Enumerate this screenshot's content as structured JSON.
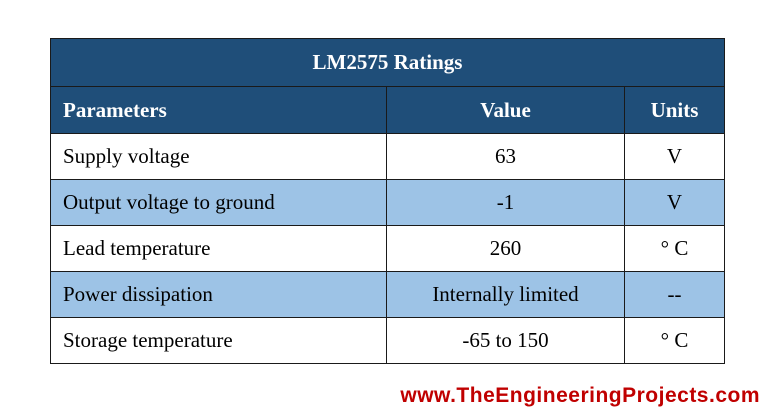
{
  "table": {
    "title": "LM2575 Ratings",
    "headers": {
      "parameters": "Parameters",
      "value": "Value",
      "units": "Units"
    },
    "rows": [
      {
        "parameter": "Supply voltage",
        "value": "63",
        "units": "V"
      },
      {
        "parameter": "Output voltage to ground",
        "value": "-1",
        "units": "V"
      },
      {
        "parameter": "Lead temperature",
        "value": "260",
        "units": "° C"
      },
      {
        "parameter": "Power dissipation",
        "value": "Internally limited",
        "units": "--"
      },
      {
        "parameter": "Storage temperature",
        "value": "-65 to 150",
        "units": "° C"
      }
    ]
  },
  "watermark": "www.TheEngineeringProjects.com",
  "colors": {
    "header_background": "#1f4e79",
    "stripe_background": "#9dc3e6",
    "watermark_color": "#c00000"
  }
}
